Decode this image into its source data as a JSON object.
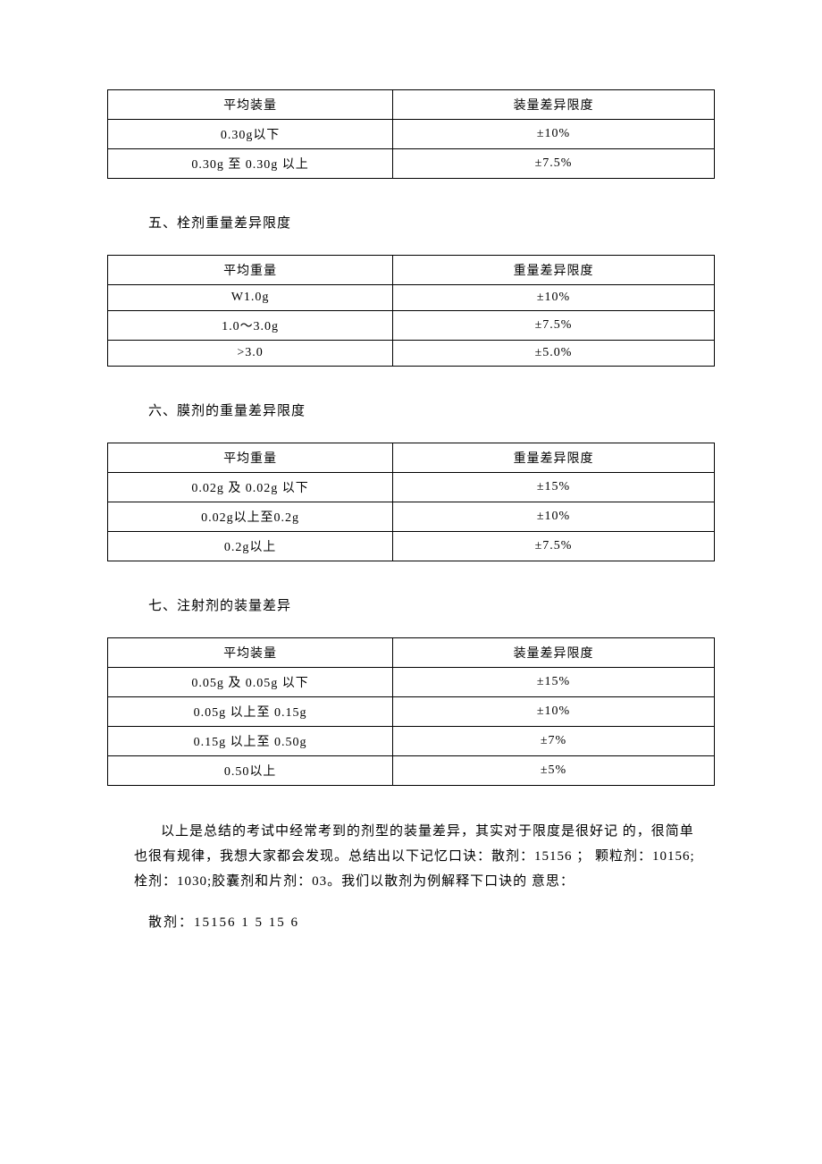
{
  "table1": {
    "header": [
      "平均装量",
      "装量差异限度"
    ],
    "rows": [
      [
        "0.30g以下",
        "±10%"
      ],
      [
        "0.30g 至 0.30g 以上",
        "±7.5%"
      ]
    ]
  },
  "section5": {
    "title": "五、栓剂重量差异限度"
  },
  "table2": {
    "header": [
      "平均重量",
      "重量差异限度"
    ],
    "rows": [
      [
        "W1.0g",
        "±10%"
      ],
      [
        "1.0～3.0g",
        "±7.5%"
      ],
      [
        ">3.0",
        "±5.0%"
      ]
    ]
  },
  "section6": {
    "title": "六、膜剂的重量差异限度"
  },
  "table3": {
    "header": [
      "平均重量",
      "重量差异限度"
    ],
    "rows": [
      [
        "0.02g 及 0.02g 以下",
        "±15%"
      ],
      [
        "0.02g以上至0.2g",
        "±10%"
      ],
      [
        "0.2g以上",
        "±7.5%"
      ]
    ]
  },
  "section7": {
    "title": "七、注射剂的装量差异"
  },
  "table4": {
    "header": [
      "平均装量",
      "装量差异限度"
    ],
    "rows": [
      [
        "0.05g 及 0.05g 以下",
        "±15%"
      ],
      [
        "0.05g 以上至 0.15g",
        "±10%"
      ],
      [
        "0.15g 以上至 0.50g",
        "±7%"
      ],
      [
        "0.50以上",
        "±5%"
      ]
    ]
  },
  "summary": {
    "paragraph": "以上是总结的考试中经常考到的剂型的装量差异，其实对于限度是很好记 的，很简单也很有规律，我想大家都会发现。总结出以下记忆口诀：散剂：15156 ； 颗粒剂：10156;栓剂：1030;胶囊剂和片剂：03。我们以散剂为例解释下口诀的 意思：",
    "mnemonic": "散剂：15156 1 5 15 6"
  }
}
